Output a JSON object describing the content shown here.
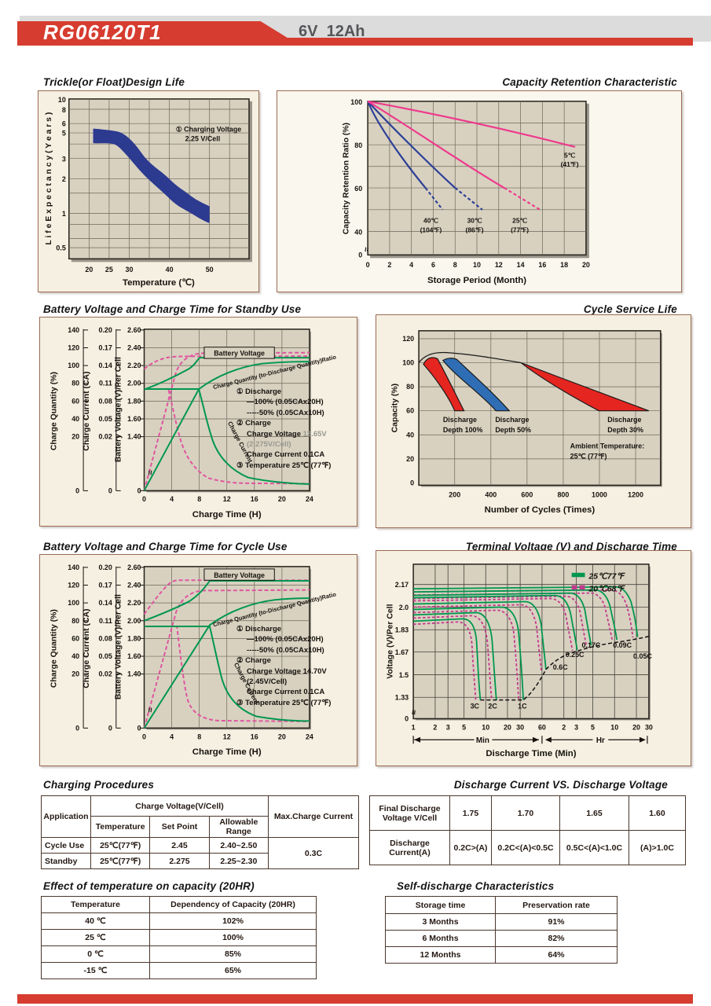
{
  "header": {
    "model": "RG06120T1",
    "rating": "6V  12Ah"
  },
  "sections": {
    "trickle": "Trickle(or Float)Design Life",
    "retention": "Capacity Retention  Characteristic",
    "standby": "Battery Voltage and Charge Time for Standby Use",
    "cycle_life": "Cycle Service Life",
    "cycle_use": "Battery Voltage and Charge Time for Cycle Use",
    "terminal": "Terminal Voltage (V) and Discharge Time",
    "charging": "Charging Procedures",
    "discharge_vs": "Discharge Current VS. Discharge Voltage",
    "temp_capacity": "Effect of temperature on capacity (20HR)",
    "self_discharge": "Self-discharge Characteristics"
  },
  "charts": {
    "c1": {
      "yt": [
        "10",
        "8",
        "6",
        "5",
        "3",
        "2",
        "1",
        "0.5"
      ],
      "xt": [
        "20",
        "25",
        "30",
        "40",
        "50"
      ],
      "ytitle": "L i f e   E x p e c t a n c y  ( Y e a r s )",
      "xtitle": "Temperature (℃)",
      "note1": "① Charging Voltage",
      "note2": "2.25 V/Cell"
    },
    "c2": {
      "yt": [
        "100",
        "80",
        "60",
        "40",
        "0"
      ],
      "xt": [
        "0",
        "2",
        "4",
        "6",
        "8",
        "10",
        "12",
        "14",
        "16",
        "18",
        "20"
      ],
      "ytitle": "Capacity Retention Ratio (%)",
      "xtitle": "Storage Period (Month)",
      "temps1": [
        "40℃",
        "30℃",
        "25℃",
        "5℃"
      ],
      "temps2": [
        "(104℉)",
        "(86℉)",
        "(77℉)",
        "(41℉)"
      ],
      "brk": "≈"
    },
    "c3": {
      "qt": [
        "140",
        "120",
        "100",
        "80",
        "60",
        "40",
        "20",
        "0"
      ],
      "ct": [
        "0.20",
        "0.17",
        "0.14",
        "0.11",
        "0.08",
        "0.05",
        "0.02",
        "0"
      ],
      "vt": [
        "2.60",
        "2.40",
        "2.20",
        "2.00",
        "1.80",
        "1.60",
        "1.40",
        "0"
      ],
      "xt": [
        "0",
        "4",
        "8",
        "12",
        "16",
        "20",
        "24"
      ],
      "t_q": "Charge Quantity (%)",
      "t_c": "Charge Current (CA)",
      "t_v": "Battery Voltage (V)/Per Cell",
      "xtitle": "Charge Time (H)",
      "lbl_bv": "Battery Voltage",
      "lbl_cq": "Charge Quantity (to-Discharge Quantity)Ratio",
      "lbl_cc": "Charge Current",
      "brk": "≈",
      "ann": {
        "l1": "① Discharge",
        "l2": "—100% (0.05CAx20H)",
        "l3": "-----50% (0.05CAx10H)",
        "l4": "② Charge",
        "l5a": "Charge Voltage ",
        "l5b": "13.65V",
        "l6": "(2.275V/Cell)",
        "l7": "Charge Current 0.1CA",
        "l8": "③ Temperature 25℃ (77℉)"
      }
    },
    "c4": {
      "yt": [
        "120",
        "100",
        "80",
        "60",
        "40",
        "20",
        "0"
      ],
      "xt": [
        "200",
        "400",
        "600",
        "800",
        "1000",
        "1200"
      ],
      "ytitle": "Capacity (%)",
      "xtitle": "Number of Cycles (Times)",
      "lbl1": [
        "Discharge",
        "Discharge",
        "Discharge"
      ],
      "lbl2": [
        "Depth 100%",
        "Depth 50%",
        "Depth 30%"
      ],
      "amb1": "Ambient Temperature:",
      "amb2": "25℃  (77℉)"
    },
    "c5": {
      "qt": [
        "140",
        "120",
        "100",
        "80",
        "60",
        "40",
        "20",
        "0"
      ],
      "ct": [
        "0.20",
        "0.17",
        "0.14",
        "0.11",
        "0.08",
        "0.05",
        "0.02",
        "0"
      ],
      "vt": [
        "2.60",
        "2.40",
        "2.20",
        "2.00",
        "1.80",
        "1.60",
        "1.40",
        "0"
      ],
      "xt": [
        "0",
        "4",
        "8",
        "12",
        "16",
        "20",
        "24"
      ],
      "t_q": "Charge Quantity (%)",
      "t_c": "Charge Current (CA)",
      "t_v": "Battery Voltage (V)/Per Cell",
      "xtitle": "Charge Time (H)",
      "lbl_bv": "Battery Voltage",
      "lbl_cq": "Charge Quantity (to-Discharge Quantity)Ratio",
      "lbl_cc": "Charge Current",
      "brk": "≈",
      "ann": {
        "l1": "① Discharge",
        "l2": "—100% (0.05CAx20H)",
        "l3": "-----50% (0.05CAx10H)",
        "l4": "② Charge",
        "l5a": "Charge Voltage ",
        "l5b": "14.70V",
        "l6": "(2.45V/Cell)",
        "l7": "Charge Current 0.1CA",
        "l8": "③ Temperature 25℃ (77℉)"
      }
    },
    "c6": {
      "yt": [
        "2.17",
        "2.0",
        "1.83",
        "1.67",
        "1.5",
        "1.33",
        "0"
      ],
      "xt": [
        "1",
        "2",
        "3",
        "5",
        "10",
        "20",
        "30",
        "60",
        "2",
        "3",
        "5",
        "10",
        "20",
        "30"
      ],
      "ytitle": "Voltage (V)/Per Cell",
      "xtitle": "Discharge Time (Min)",
      "leg1": "25℃77℉",
      "leg2": "20℃68℉",
      "rates": [
        "3C",
        "2C",
        "1C",
        "0.6C",
        "0.25C",
        "0.17C",
        "0.09C",
        "0.05C"
      ],
      "min": "Min",
      "hr": "Hr",
      "brk": "≈"
    }
  },
  "chart_data": [
    {
      "id": "trickle_design_life",
      "type": "area",
      "title": "Trickle(or Float)Design Life",
      "xlabel": "Temperature (℃)",
      "ylabel": "Life Expectancy (Years)",
      "y_scale": "log",
      "x_ticks": [
        20,
        25,
        30,
        40,
        50
      ],
      "y_ticks": [
        10,
        8,
        6,
        5,
        3,
        2,
        1,
        0.5
      ],
      "annotation": "① Charging Voltage 2.25 V/Cell",
      "band_upper": [
        [
          21,
          5.5
        ],
        [
          27,
          5.2
        ],
        [
          33,
          3.4
        ],
        [
          40,
          2.0
        ],
        [
          45,
          1.45
        ],
        [
          50,
          1.15
        ]
      ],
      "band_lower": [
        [
          21,
          4.1
        ],
        [
          27,
          3.9
        ],
        [
          33,
          2.3
        ],
        [
          40,
          1.35
        ],
        [
          45,
          1.02
        ],
        [
          50,
          0.82
        ]
      ]
    },
    {
      "id": "capacity_retention",
      "type": "line",
      "title": "Capacity Retention  Characteristic",
      "xlabel": "Storage Period (Month)",
      "ylabel": "Capacity Retention Ratio (%)",
      "xlim": [
        0,
        20
      ],
      "y_ticks": [
        100,
        80,
        60,
        40,
        0
      ],
      "series": [
        {
          "name": "40℃ (104℉)",
          "color": "#2c3f97",
          "solid": [
            [
              0,
              100
            ],
            [
              2,
              82
            ],
            [
              4,
              68
            ],
            [
              5.3,
              60
            ]
          ],
          "dashed": [
            [
              5.3,
              60
            ],
            [
              6.9,
              50
            ]
          ]
        },
        {
          "name": "30℃ (86℉)",
          "color": "#2c3f97",
          "solid": [
            [
              0,
              100
            ],
            [
              3,
              81
            ],
            [
              6,
              67
            ],
            [
              8,
              60
            ]
          ],
          "dashed": [
            [
              8,
              60
            ],
            [
              10.5,
              50
            ]
          ]
        },
        {
          "name": "25℃ (77℉)",
          "color": "#ee3a8c",
          "solid": [
            [
              0,
              100
            ],
            [
              4,
              85
            ],
            [
              8,
              72
            ],
            [
              12.5,
              60
            ]
          ],
          "dashed": [
            [
              12.5,
              60
            ],
            [
              15.8,
              50
            ]
          ]
        },
        {
          "name": "5℃ (41℉)",
          "color": "#ee3a8c",
          "solid": [
            [
              0,
              100
            ],
            [
              10,
              89
            ],
            [
              19,
              79
            ]
          ]
        }
      ]
    },
    {
      "id": "charge_time_standby",
      "type": "line",
      "title": "Battery Voltage and Charge Time for Standby Use",
      "xlabel": "Charge Time (H)",
      "x_ticks": [
        0,
        4,
        8,
        12,
        16,
        20,
        24
      ],
      "axes": {
        "quantity": [
          0,
          140
        ],
        "current_CA": [
          0,
          0.2
        ],
        "voltage_per_cell": [
          0,
          2.6
        ]
      },
      "series": [
        {
          "name": "Battery Voltage (100% discharge)",
          "style": "solid-green",
          "points": [
            [
              0,
              1.93
            ],
            [
              4,
              2.05
            ],
            [
              7,
              2.17
            ],
            [
              8,
              2.29
            ],
            [
              24,
              2.29
            ]
          ]
        },
        {
          "name": "Battery Voltage (50% discharge)",
          "style": "dashed-pink",
          "points": [
            [
              0,
              2.16
            ],
            [
              3.5,
              2.29
            ],
            [
              24,
              2.3
            ]
          ]
        },
        {
          "name": "Charge Quantity (100%)",
          "style": "solid-green",
          "points": [
            [
              0,
              0
            ],
            [
              8,
              73
            ],
            [
              16,
              98
            ],
            [
              24,
              103
            ]
          ]
        },
        {
          "name": "Charge Quantity (50%)",
          "style": "dashed-pink",
          "points": [
            [
              0,
              0
            ],
            [
              4.5,
              90
            ],
            [
              7,
              110
            ],
            [
              24,
              112
            ]
          ]
        },
        {
          "name": "Charge Current (100%)",
          "style": "solid-green",
          "points": [
            [
              0,
              0.1
            ],
            [
              8,
              0.1
            ],
            [
              12,
              0.03
            ],
            [
              18,
              0.01
            ],
            [
              24,
              0.008
            ]
          ]
        },
        {
          "name": "Charge Current (50%)",
          "style": "dashed-pink",
          "points": [
            [
              0,
              0.1
            ],
            [
              3.5,
              0.1
            ],
            [
              7,
              0.03
            ],
            [
              10,
              0.01
            ],
            [
              24,
              0.008
            ]
          ]
        }
      ]
    },
    {
      "id": "cycle_service_life",
      "type": "area",
      "title": "Cycle Service Life",
      "xlabel": "Number of Cycles (Times)",
      "ylabel": "Capacity (%)",
      "x_ticks": [
        200,
        400,
        600,
        800,
        1000,
        1200
      ],
      "y_ticks": [
        0,
        20,
        40,
        60,
        80,
        100,
        120
      ],
      "end_capacity_pct": 60,
      "annotation": "Ambient Temperature: 25℃ (77℉)",
      "bands": [
        {
          "name": "Discharge Depth 100%",
          "color": "#e52520",
          "cycles_to_60pct": [
            200,
            260
          ]
        },
        {
          "name": "Discharge Depth 50%",
          "color": "#2f6eb5",
          "cycles_to_60pct": [
            430,
            500
          ]
        },
        {
          "name": "Discharge Depth 30%",
          "color": "#e52520",
          "cycles_to_60pct": [
            1000,
            1230
          ]
        }
      ]
    },
    {
      "id": "charge_time_cycle",
      "type": "line",
      "title": "Battery Voltage and Charge Time for Cycle Use",
      "xlabel": "Charge Time (H)",
      "x_ticks": [
        0,
        4,
        8,
        12,
        16,
        20,
        24
      ],
      "axes": {
        "quantity": [
          0,
          140
        ],
        "current_CA": [
          0,
          0.2
        ],
        "voltage_per_cell": [
          0,
          2.6
        ]
      },
      "series": [
        {
          "name": "Battery Voltage (100% discharge)",
          "style": "solid-green",
          "points": [
            [
              0,
              2.0
            ],
            [
              6,
              2.15
            ],
            [
              9.5,
              2.45
            ],
            [
              24,
              2.45
            ]
          ]
        },
        {
          "name": "Battery Voltage (50% discharge)",
          "style": "dashed-pink",
          "points": [
            [
              0,
              2.07
            ],
            [
              4.5,
              2.45
            ],
            [
              24,
              2.45
            ]
          ]
        },
        {
          "name": "Charge Quantity (100%)",
          "style": "solid-green",
          "points": [
            [
              0,
              0
            ],
            [
              9.5,
              75
            ],
            [
              16,
              100
            ],
            [
              24,
              105
            ]
          ]
        },
        {
          "name": "Charge Quantity (50%)",
          "style": "dashed-pink",
          "points": [
            [
              0,
              0
            ],
            [
              5,
              95
            ],
            [
              8,
              110
            ],
            [
              24,
              113
            ]
          ]
        },
        {
          "name": "Charge Current (100%)",
          "style": "solid-green",
          "points": [
            [
              0,
              0.1
            ],
            [
              9.5,
              0.1
            ],
            [
              14,
              0.04
            ],
            [
              20,
              0.015
            ],
            [
              24,
              0.012
            ]
          ]
        },
        {
          "name": "Charge Current (50%)",
          "style": "dashed-pink",
          "points": [
            [
              0,
              0.1
            ],
            [
              4.5,
              0.1
            ],
            [
              7,
              0.03
            ],
            [
              10,
              0.012
            ],
            [
              24,
              0.01
            ]
          ]
        }
      ]
    },
    {
      "id": "terminal_voltage_discharge_time",
      "type": "line",
      "title": "Terminal Voltage (V) and Discharge Time",
      "xlabel": "Discharge Time (Min)",
      "ylabel": "Voltage (V)/Per Cell",
      "x_scale": "log",
      "x_ticks_min": [
        1,
        2,
        3,
        5,
        10,
        20,
        30,
        60
      ],
      "x_ticks_hr": [
        2,
        3,
        5,
        10,
        20,
        30
      ],
      "y_ticks": [
        2.17,
        2.0,
        1.83,
        1.67,
        1.5,
        1.33,
        0
      ],
      "legend": [
        {
          "label": "25℃77℉",
          "style": "solid-green"
        },
        {
          "label": "20℃68℉",
          "style": "dashed-pink"
        }
      ],
      "rates": [
        {
          "c": "3C",
          "plateau_v": 1.92,
          "end_min": 8.5,
          "end_v": 1.31
        },
        {
          "c": "2C",
          "plateau_v": 1.96,
          "end_min": 14,
          "end_v": 1.31
        },
        {
          "c": "1C",
          "plateau_v": 2.0,
          "end_min": 33,
          "end_v": 1.31
        },
        {
          "c": "0.6C",
          "plateau_v": 2.04,
          "end_min": 68,
          "end_v": 1.53
        },
        {
          "c": "0.25C",
          "plateau_v": 2.08,
          "end_min": 185,
          "end_v": 1.66
        },
        {
          "c": "0.17C",
          "plateau_v": 2.1,
          "end_min": 290,
          "end_v": 1.7
        },
        {
          "c": "0.09C",
          "plateau_v": 2.12,
          "end_min": 660,
          "end_v": 1.73
        },
        {
          "c": "0.05C",
          "plateau_v": 2.14,
          "end_min": 1250,
          "end_v": 1.76
        }
      ]
    }
  ],
  "tables": {
    "charging": {
      "h_application": "Application",
      "h_charge_voltage": "Charge Voltage(V/Cell)",
      "h_max_current": "Max.Charge Current",
      "h_temperature": "Temperature",
      "h_set_point": "Set Point",
      "h_allowable": "Allowable Range",
      "rows": [
        {
          "app": "Cycle Use",
          "temp": "25℃(77℉)",
          "set": "2.45",
          "range": "2.40~2.50"
        },
        {
          "app": "Standby",
          "temp": "25℃(77℉)",
          "set": "2.275",
          "range": "2.25~2.30"
        }
      ],
      "max_current": "0.3C"
    },
    "discharge": {
      "r1_label": "Final Discharge\nVoltage V/Cell",
      "r1": [
        "1.75",
        "1.70",
        "1.65",
        "1.60"
      ],
      "r2_label": "Discharge\nCurrent(A)",
      "r2": [
        "0.2C>(A)",
        "0.2C<(A)<0.5C",
        "0.5C<(A)<1.0C",
        "(A)>1.0C"
      ]
    },
    "temp_capacity": {
      "h1": "Temperature",
      "h2": "Dependency of Capacity (20HR)",
      "rows": [
        [
          "40 ℃",
          "102%"
        ],
        [
          "25 ℃",
          "100%"
        ],
        [
          "0 ℃",
          "85%"
        ],
        [
          "-15 ℃",
          "65%"
        ]
      ]
    },
    "self_discharge": {
      "h1": "Storage time",
      "h2": "Preservation rate",
      "rows": [
        [
          "3 Months",
          "91%"
        ],
        [
          "6 Months",
          "82%"
        ],
        [
          "12 Months",
          "64%"
        ]
      ]
    }
  },
  "colors": {
    "accent_red": "#d63c2f",
    "banner_gray": "#dcdcdc",
    "panel_bg": "#f5f0e1",
    "plot_bg": "#d8d1c0",
    "grid": "#6e675a",
    "design_life_band_navy": "#2c3a90",
    "curve_green": "#00974f",
    "curve_pink_dashed": "#e0559f",
    "retention_pink": "#ee3a8c",
    "retention_blue": "#2c3f97",
    "cycle_red": "#e52520",
    "cycle_blue": "#2f6eb5",
    "gray_note_text": "#98978f"
  }
}
